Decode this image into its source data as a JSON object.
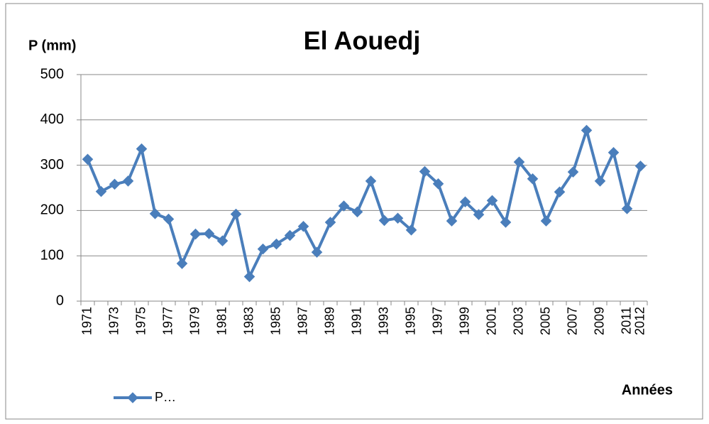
{
  "chart_data": {
    "type": "line",
    "title": "El Aouedj",
    "y_label": "P (mm)",
    "x_label": "Années",
    "categories": [
      "1971",
      null,
      "1973",
      null,
      "1975",
      null,
      "1977",
      null,
      "1979",
      null,
      "1981",
      null,
      "1983",
      null,
      "1985",
      null,
      "1987",
      null,
      "1989",
      null,
      "1991",
      null,
      "1993",
      null,
      "1995",
      null,
      "1997",
      null,
      "1999",
      null,
      "2001",
      null,
      "2003",
      null,
      "2005",
      null,
      "2007",
      null,
      "2009",
      null,
      "2011",
      "2012"
    ],
    "series": [
      {
        "name": "P…",
        "color": "#4a7ebb",
        "values": [
          313,
          242,
          258,
          265,
          336,
          193,
          181,
          83,
          148,
          149,
          133,
          192,
          54,
          115,
          126,
          145,
          165,
          108,
          174,
          210,
          197,
          265,
          178,
          183,
          157,
          286,
          259,
          177,
          219,
          191,
          222,
          174,
          307,
          270,
          177,
          241,
          285,
          377,
          265,
          328,
          204,
          298
        ]
      }
    ],
    "ylim": [
      0,
      500
    ],
    "yticks": [
      0,
      100,
      200,
      300,
      400,
      500
    ],
    "grid": true,
    "legend": "bottom-left"
  }
}
